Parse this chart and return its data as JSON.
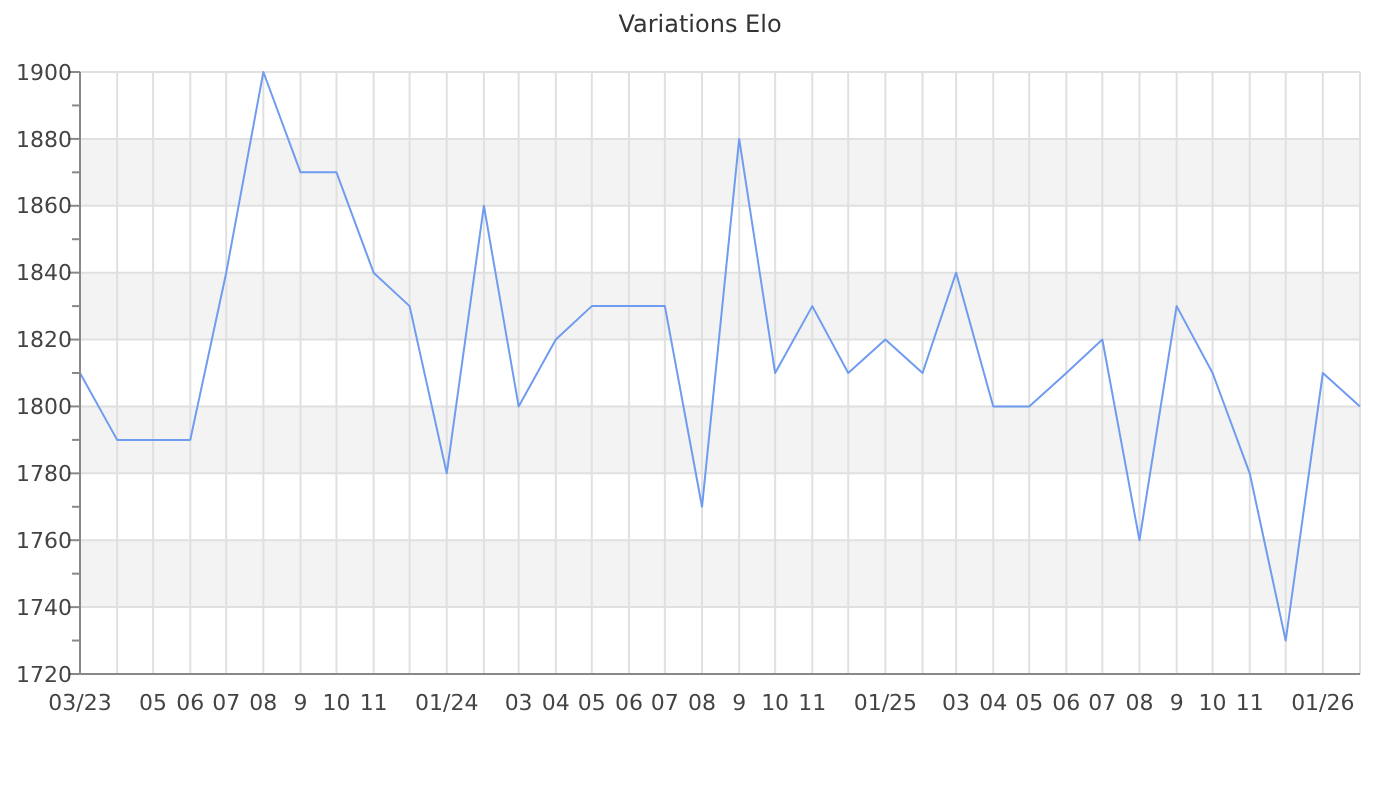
{
  "chart_data": {
    "type": "line",
    "title": "Variations Elo",
    "x": [
      "2023-03",
      "2023-04",
      "2023-05",
      "2023-06",
      "2023-07",
      "2023-08",
      "2023-09",
      "2023-10",
      "2023-11",
      "2023-12",
      "2024-01",
      "2024-02",
      "2024-03",
      "2024-04",
      "2024-05",
      "2024-06",
      "2024-07",
      "2024-08",
      "2024-09",
      "2024-10",
      "2024-11",
      "2024-12",
      "2025-01",
      "2025-02",
      "2025-03",
      "2025-04",
      "2025-05",
      "2025-06",
      "2025-07",
      "2025-08",
      "2025-09",
      "2025-10",
      "2025-11",
      "2025-12",
      "2026-01",
      "2026-02"
    ],
    "series": [
      {
        "color": "#6f9cf0",
        "values": [
          1810,
          1790,
          1790,
          1790,
          1840,
          1900,
          1870,
          1870,
          1840,
          1830,
          1780,
          1860,
          1800,
          1820,
          1830,
          1830,
          1830,
          1770,
          1880,
          1810,
          1830,
          1810,
          1820,
          1810,
          1840,
          1800,
          1800,
          1810,
          1820,
          1760,
          1830,
          1810,
          1780,
          1730,
          1810,
          1800
        ]
      }
    ],
    "xlim": [
      "2023-03",
      "2026-02"
    ],
    "xticks": [
      {
        "value": "2023-03",
        "label": "03/23"
      },
      {
        "value": "2023-04",
        "label": null
      },
      {
        "value": "2023-05",
        "label": "05"
      },
      {
        "value": "2023-06",
        "label": "06"
      },
      {
        "value": "2023-07",
        "label": "07"
      },
      {
        "value": "2023-08",
        "label": "08"
      },
      {
        "value": "2023-09",
        "label": "9"
      },
      {
        "value": "2023-10",
        "label": "10"
      },
      {
        "value": "2023-11",
        "label": "11"
      },
      {
        "value": "2023-12",
        "label": null
      },
      {
        "value": "2024-01",
        "label": "01/24"
      },
      {
        "value": "2024-02",
        "label": null
      },
      {
        "value": "2024-03",
        "label": "03"
      },
      {
        "value": "2024-04",
        "label": "04"
      },
      {
        "value": "2024-05",
        "label": "05"
      },
      {
        "value": "2024-06",
        "label": "06"
      },
      {
        "value": "2024-07",
        "label": "07"
      },
      {
        "value": "2024-08",
        "label": "08"
      },
      {
        "value": "2024-09",
        "label": "9"
      },
      {
        "value": "2024-10",
        "label": "10"
      },
      {
        "value": "2024-11",
        "label": "11"
      },
      {
        "value": "2024-12",
        "label": null
      },
      {
        "value": "2025-01",
        "label": "01/25"
      },
      {
        "value": "2025-02",
        "label": null
      },
      {
        "value": "2025-03",
        "label": "03"
      },
      {
        "value": "2025-04",
        "label": "04"
      },
      {
        "value": "2025-05",
        "label": "05"
      },
      {
        "value": "2025-06",
        "label": "06"
      },
      {
        "value": "2025-07",
        "label": "07"
      },
      {
        "value": "2025-08",
        "label": "08"
      },
      {
        "value": "2025-09",
        "label": "9"
      },
      {
        "value": "2025-10",
        "label": "10"
      },
      {
        "value": "2025-11",
        "label": "11"
      },
      {
        "value": "2025-12",
        "label": null
      },
      {
        "value": "2026-01",
        "label": "01/26"
      },
      {
        "value": "2026-02",
        "label": null
      }
    ],
    "ylim": [
      1720,
      1900
    ],
    "yticks": [
      1720,
      {
        "value": 1730,
        "label": null
      },
      1740,
      {
        "value": 1750,
        "label": null
      },
      1760,
      {
        "value": 1770,
        "label": null
      },
      1780,
      {
        "value": 1790,
        "label": null
      },
      1800,
      {
        "value": 1810,
        "label": null
      },
      1820,
      {
        "value": 1830,
        "label": null
      },
      1840,
      {
        "value": 1850,
        "label": null
      },
      1860,
      {
        "value": 1870,
        "label": null
      },
      1880,
      {
        "value": 1890,
        "label": null
      },
      1900
    ],
    "grid": true,
    "marker": "none",
    "line_style": "solid"
  }
}
